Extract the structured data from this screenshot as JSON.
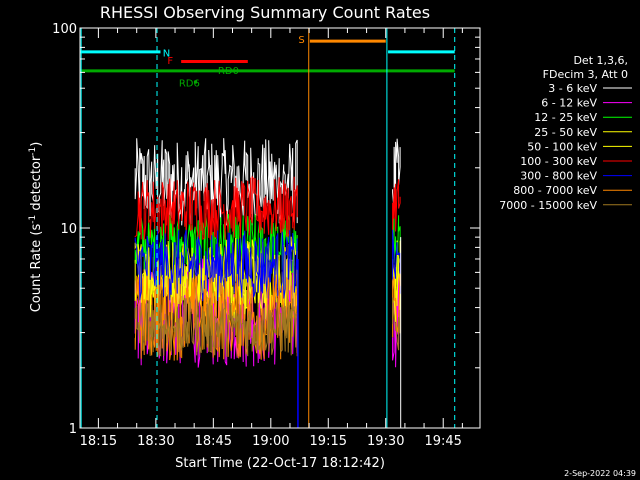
{
  "chart_data": {
    "type": "line",
    "title": "RHESSI Observing Summary Count Rates",
    "xlabel": "Start Time (22-Oct-17 18:12:42)",
    "ylabel": "Count Rate (s",
    "ylabel_sup": "-1",
    "ylabel_tail": " detector",
    "ylabel_tail_sup": "-1",
    "ylabel_close": ")",
    "yscale": "log",
    "ylim": [
      1,
      100
    ],
    "y_ticks": [
      {
        "v": 1,
        "label": "1"
      },
      {
        "v": 10,
        "label": "10"
      },
      {
        "v": 100,
        "label": "100"
      }
    ],
    "xlim": [
      18.17,
      19.91
    ],
    "x_ticks": [
      {
        "v": 18.25,
        "label": "18:15"
      },
      {
        "v": 18.5,
        "label": "18:30"
      },
      {
        "v": 18.75,
        "label": "18:45"
      },
      {
        "v": 19.0,
        "label": "19:00"
      },
      {
        "v": 19.25,
        "label": "19:15"
      },
      {
        "v": 19.5,
        "label": "19:30"
      },
      {
        "v": 19.75,
        "label": "19:45"
      }
    ],
    "legend_header": [
      "Det 1,3,6,",
      "FDecim 3, Att 0"
    ],
    "legend_position": "right",
    "series": [
      {
        "name": "3 - 6 keV",
        "color": "#ffffff",
        "base": 17,
        "spread": 0.22,
        "base2": 17
      },
      {
        "name": "6 - 12 keV",
        "color": "#ff00ff",
        "base": 3.8,
        "spread": 0.28,
        "base2": 3.8
      },
      {
        "name": "12 - 25 keV",
        "color": "#00ff00",
        "base": 8.2,
        "spread": 0.16,
        "base2": 8.2
      },
      {
        "name": "25 - 50 keV",
        "color": "#ffff00",
        "base": 6.0,
        "spread": 0.18,
        "base2": 6.0
      },
      {
        "name": "50 - 100 keV",
        "color": "#ffff00",
        "base": 5.0,
        "spread": 0.18,
        "base2": 5.0
      },
      {
        "name": "100 - 300 keV",
        "color": "#ff0000",
        "base": 12.5,
        "spread": 0.16,
        "base2": 13.5
      },
      {
        "name": "300 - 800 keV",
        "color": "#0000ff",
        "base": 6.5,
        "spread": 0.18,
        "base2": 6.5
      },
      {
        "name": "800 - 7000 keV",
        "color": "#ff8800",
        "base": 3.6,
        "spread": 0.22,
        "base2": 4.2
      },
      {
        "name": "7000 - 15000 keV",
        "color": "#a07820",
        "base": 3.2,
        "spread": 0.15,
        "base2": 3.2
      }
    ],
    "data_intervals": [
      [
        18.41,
        19.12
      ],
      [
        19.53,
        19.565
      ]
    ],
    "flag_bars": [
      {
        "label": "N",
        "color": "#00ffff",
        "y": 76,
        "segments": [
          [
            18.17,
            18.52
          ],
          [
            19.51,
            19.8
          ]
        ],
        "label_at": 18.53,
        "label_y": 72
      },
      {
        "label": "S",
        "color": "#ff8800",
        "y": 86,
        "segments": [
          [
            19.17,
            19.5
          ]
        ],
        "label_at": 19.12,
        "label_y": 84
      },
      {
        "label": "F",
        "color": "#ff0000",
        "y": 68,
        "segments": [
          [
            18.61,
            18.9
          ]
        ],
        "label_at": 18.55,
        "label_y": 66
      },
      {
        "label": "RD0",
        "color": "#00aa00",
        "y": 63,
        "segments": [],
        "label_at": 18.77,
        "label_y": 59
      },
      {
        "label": "RD6",
        "color": "#00aa00",
        "y": 55,
        "segments": [],
        "label_at": 18.6,
        "label_y": 51
      },
      {
        "label": "",
        "color": "#00aa00",
        "y": 61,
        "segments": [
          [
            18.17,
            19.8
          ]
        ],
        "label_at": 18.17,
        "label_y": 61
      }
    ],
    "vlines": [
      {
        "x": 18.175,
        "color": "#00ffff",
        "dashed": false
      },
      {
        "x": 18.505,
        "color": "#00ffff",
        "dashed": true
      },
      {
        "x": 19.165,
        "color": "#ff8800",
        "dashed": false
      },
      {
        "x": 19.505,
        "color": "#00ffff",
        "dashed": false
      },
      {
        "x": 19.8,
        "color": "#00ffff",
        "dashed": true
      }
    ],
    "footer_date": "2-Sep-2022 04:39"
  }
}
